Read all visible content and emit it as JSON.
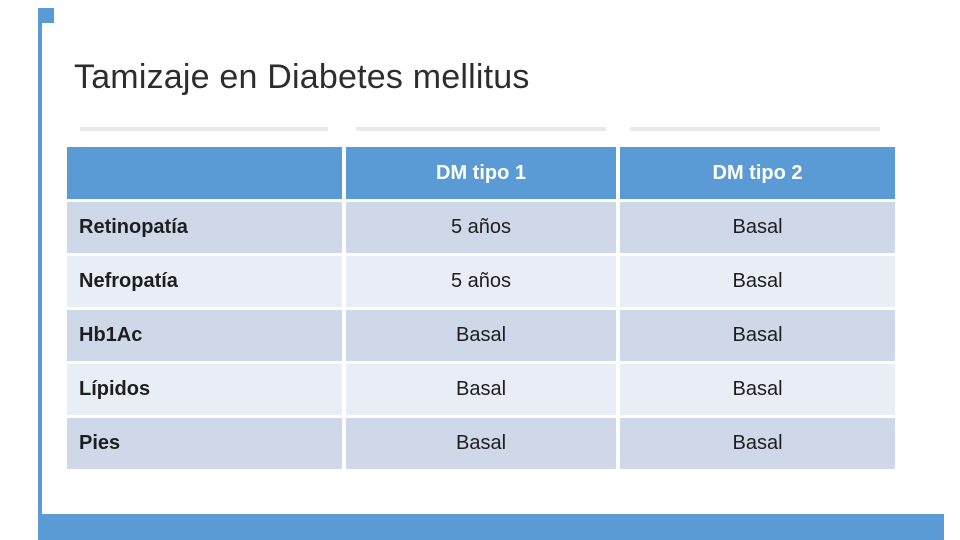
{
  "slide": {
    "title": "Tamizaje en Diabetes mellitus"
  },
  "theme": {
    "accent_blue": "#5B9BD5",
    "band_dark": "#CED8E9",
    "band_light": "#E9EDF5",
    "header_text": "#FFFFFF",
    "title_color": "#2D2D2D",
    "cell_text": "#1E1E1E",
    "strip_gray": "#E9E9E9"
  },
  "table": {
    "columns": [
      "",
      "DM tipo 1",
      "DM tipo 2"
    ],
    "rows": [
      {
        "label": "Retinopatía",
        "dm1": "5 años",
        "dm2": "Basal"
      },
      {
        "label": "Nefropatía",
        "dm1": "5 años",
        "dm2": "Basal"
      },
      {
        "label": "Hb1Ac",
        "dm1": "Basal",
        "dm2": "Basal"
      },
      {
        "label": "Lípidos",
        "dm1": "Basal",
        "dm2": "Basal"
      },
      {
        "label": "Pies",
        "dm1": "Basal",
        "dm2": "Basal"
      }
    ]
  }
}
